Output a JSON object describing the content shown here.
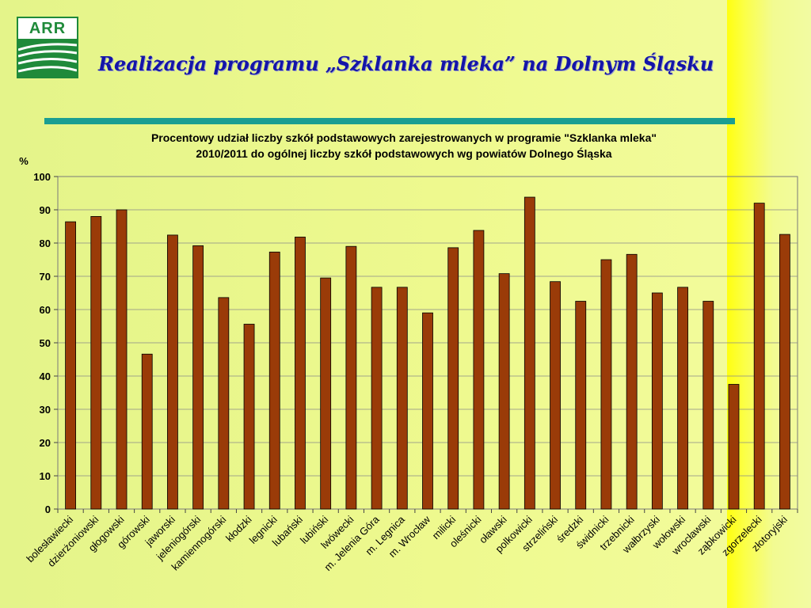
{
  "header": {
    "logo_text": "ARR",
    "title": "Realizacja programu „Szklanka mleka” na Dolnym Śląsku"
  },
  "colors": {
    "bar": "#9a3b08",
    "title": "#1414a8",
    "rule": "#1a9e92"
  },
  "chart_data": {
    "type": "bar",
    "title_lines": [
      "Procentowy udział liczby szkół podstawowych zarejestrowanych w programie \"Szklanka mleka\"",
      "2010/2011 do ogólnej liczby szkół podstawowych wg powiatów Dolnego Śląska"
    ],
    "ylabel": "%",
    "xlabel": "",
    "ylim": [
      0,
      100
    ],
    "yticks": [
      0,
      10,
      20,
      30,
      40,
      50,
      60,
      70,
      80,
      90,
      100
    ],
    "grid": true,
    "legend": "none",
    "categories": [
      "bolesławiecki",
      "dzierżoniowski",
      "głogowski",
      "górowski",
      "jaworski",
      "jeleniogórski",
      "kamiennogórski",
      "kłodzki",
      "legnicki",
      "lubański",
      "lubiński",
      "lwówecki",
      "m. Jelenia Góra",
      "m. Legnica",
      "m. Wrocław",
      "milicki",
      "oleśnicki",
      "oławski",
      "polkowicki",
      "strzeliński",
      "średzki",
      "świdnicki",
      "trzebnicki",
      "wałbrzyski",
      "wołowski",
      "wrocławski",
      "ząbkowicki",
      "zgorzelecki",
      "złotoryjski"
    ],
    "values": [
      86.4,
      88.0,
      90.0,
      46.6,
      82.4,
      79.2,
      63.6,
      55.6,
      77.3,
      81.8,
      69.5,
      79.0,
      66.7,
      66.7,
      59.0,
      78.6,
      83.8,
      70.8,
      93.8,
      68.4,
      62.5,
      75.0,
      76.6,
      65.0,
      66.7,
      62.5,
      37.5,
      92.0,
      82.6
    ]
  }
}
